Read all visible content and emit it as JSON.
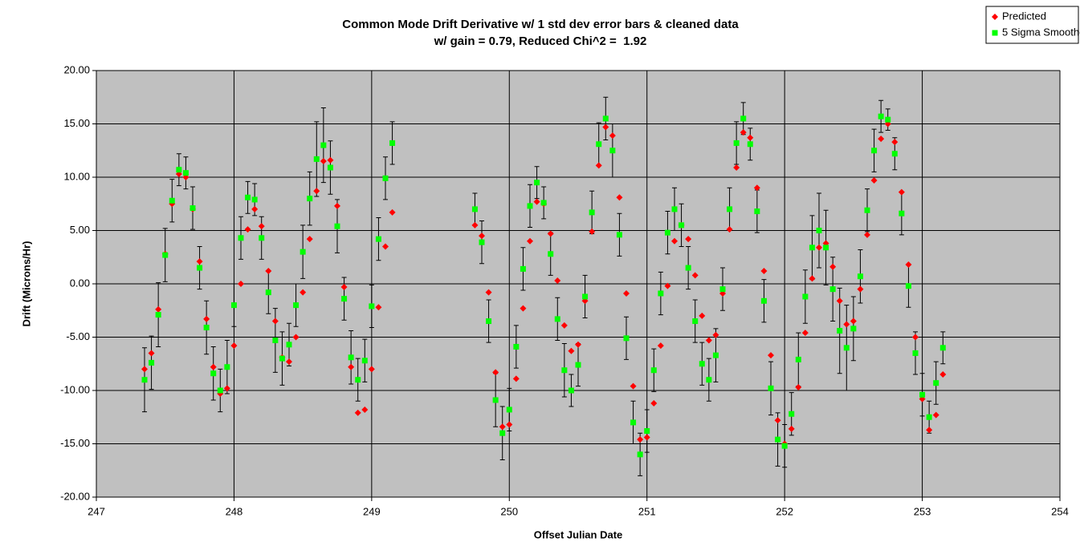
{
  "chart_data": {
    "type": "scatter",
    "title": "Common Mode Drift Derivative w/ 1 std dev error bars & cleaned data",
    "subtitle": "w/ gain = 0.79, Reduced Chi^2 =  1.92",
    "x_label": "Offset Julian Date",
    "y_label": "Drift (Microns/Hr)",
    "xlim": [
      247,
      254
    ],
    "xticks": [
      247,
      248,
      249,
      250,
      251,
      252,
      253,
      254
    ],
    "ylim": [
      -20,
      20
    ],
    "yticks": [
      {
        "value": -20,
        "label": "-20.00"
      },
      {
        "value": -15,
        "label": "-15.00"
      },
      {
        "value": -10,
        "label": "-10.00"
      },
      {
        "value": -5,
        "label": "-5.00"
      },
      {
        "value": 0,
        "label": "0.00"
      },
      {
        "value": 5,
        "label": "5.00"
      },
      {
        "value": 10,
        "label": "10.00"
      },
      {
        "value": 15,
        "label": "15.00"
      },
      {
        "value": 20,
        "label": "20.00"
      }
    ],
    "grid": true,
    "legend": "top-right",
    "x": [
      247.35,
      247.4,
      247.45,
      247.5,
      247.55,
      247.6,
      247.65,
      247.7,
      247.75,
      247.8,
      247.85,
      247.9,
      247.95,
      248,
      248.05,
      248.1,
      248.15,
      248.2,
      248.25,
      248.3,
      248.35,
      248.4,
      248.45,
      248.5,
      248.55,
      248.6,
      248.65,
      248.7,
      248.75,
      248.8,
      248.85,
      248.9,
      248.95,
      249,
      249.05,
      249.1,
      249.15,
      249.75,
      249.8,
      249.85,
      249.9,
      249.95,
      250,
      250.05,
      250.1,
      250.15,
      250.2,
      250.25,
      250.3,
      250.35,
      250.4,
      250.45,
      250.5,
      250.55,
      250.6,
      250.65,
      250.7,
      250.75,
      250.8,
      250.85,
      250.9,
      250.95,
      251,
      251.05,
      251.1,
      251.15,
      251.2,
      251.25,
      251.3,
      251.35,
      251.4,
      251.45,
      251.5,
      251.55,
      251.6,
      251.65,
      251.7,
      251.75,
      251.8,
      251.85,
      251.9,
      251.95,
      252,
      252.05,
      252.1,
      252.15,
      252.2,
      252.25,
      252.3,
      252.35,
      252.4,
      252.45,
      252.5,
      252.55,
      252.6,
      252.65,
      252.7,
      252.75,
      252.8,
      252.85,
      252.9,
      252.95,
      253,
      253.05,
      253.1,
      253.15
    ],
    "series": [
      {
        "name": "Predicted",
        "color": "#ff0000",
        "marker": "diamond",
        "values": [
          -8,
          -6.5,
          -2.4,
          2.8,
          7.5,
          10.3,
          10,
          7,
          2.1,
          -3.3,
          -7.8,
          -10.3,
          -9.8,
          -5.8,
          0,
          5.1,
          7,
          5.4,
          1.2,
          -3.5,
          -6.9,
          -7.3,
          -5,
          -0.8,
          4.2,
          8.7,
          11.5,
          11.6,
          7.3,
          -0.3,
          -7.8,
          -12.1,
          -11.8,
          -8,
          -2.2,
          3.5,
          6.7,
          5.5,
          4.5,
          -0.8,
          -8.3,
          -13.4,
          -13.2,
          -8.9,
          -2.3,
          4,
          7.7,
          7.5,
          4.7,
          0.3,
          -3.9,
          -6.3,
          -5.7,
          -1.6,
          4.9,
          11.1,
          14.7,
          13.9,
          8.1,
          -0.9,
          -9.6,
          -14.6,
          -14.4,
          -11.2,
          -5.8,
          -0.2,
          4,
          5.5,
          4.2,
          0.8,
          -3,
          -5.3,
          -4.8,
          -0.9,
          5.1,
          10.9,
          14.2,
          13.7,
          9,
          1.2,
          -6.7,
          -12.8,
          -15,
          -13.6,
          -9.7,
          -4.6,
          0.5,
          3.4,
          3.8,
          1.6,
          -1.6,
          -3.8,
          -3.5,
          -0.5,
          4.6,
          9.7,
          13.6,
          15,
          13.3,
          8.6,
          1.8,
          -5,
          -10.8,
          -13.7,
          -12.3,
          -8.5
        ]
      },
      {
        "name": "5 Sigma Smoothed",
        "color": "#00ff00",
        "marker": "square",
        "error_color": "#000000",
        "values": [
          -9,
          -7.4,
          -2.9,
          2.7,
          7.8,
          10.7,
          10.4,
          7.1,
          1.5,
          -4.1,
          -8.4,
          -10,
          -7.8,
          -2,
          4.3,
          8.1,
          7.9,
          4.3,
          -0.8,
          -5.3,
          -7,
          -5.7,
          -2,
          3,
          8,
          11.7,
          13,
          10.9,
          5.4,
          -1.4,
          -6.9,
          -9,
          -7.2,
          -2.1,
          4.2,
          9.9,
          13.2,
          7,
          3.9,
          -3.5,
          -10.9,
          -14,
          -11.8,
          -5.9,
          1.4,
          7.3,
          9.5,
          7.6,
          2.8,
          -3.3,
          -8.1,
          -10,
          -7.6,
          -1.2,
          6.7,
          13.1,
          15.5,
          12.5,
          4.6,
          -5.1,
          -13,
          -16,
          -13.8,
          -8.1,
          -0.9,
          4.8,
          7,
          5.5,
          1.5,
          -3.5,
          -7.5,
          -9,
          -6.7,
          -0.5,
          7,
          13.2,
          15.5,
          13.1,
          6.8,
          -1.6,
          -9.8,
          -14.6,
          -15.2,
          -12.2,
          -7.1,
          -1.2,
          3.4,
          5,
          3.4,
          -0.5,
          -4.4,
          -6,
          -4.2,
          0.7,
          6.9,
          12.5,
          15.7,
          15.4,
          12.2,
          6.6,
          -0.2,
          -6.5,
          -10.4,
          -12.5,
          -9.3,
          -6
        ],
        "errors": [
          3,
          2.5,
          3,
          2.5,
          2,
          1.5,
          1.5,
          2,
          2,
          2.5,
          2.5,
          2,
          2.5,
          2,
          2,
          1.5,
          1.5,
          2,
          2,
          3,
          2.5,
          2,
          2,
          2.5,
          2.5,
          3.5,
          3.5,
          2.5,
          2.5,
          2,
          2.5,
          2,
          2,
          2,
          2,
          2,
          2,
          1.5,
          2,
          2,
          2.5,
          2.5,
          2,
          2,
          2,
          2,
          1.5,
          1.5,
          2,
          2,
          2.5,
          1.5,
          2,
          2,
          2,
          2,
          2,
          2.5,
          2,
          2,
          2,
          2,
          2,
          2,
          2,
          2,
          2,
          2,
          2,
          2,
          2,
          2,
          2.5,
          2,
          2,
          2,
          1.5,
          1.5,
          2,
          2,
          2.5,
          2.5,
          2,
          2,
          2.5,
          2.5,
          3,
          3.5,
          3.5,
          3,
          4,
          4,
          3,
          2.5,
          2,
          2,
          1.5,
          1,
          1.5,
          2,
          2,
          2,
          2,
          1.5,
          2,
          1.5
        ]
      }
    ]
  }
}
